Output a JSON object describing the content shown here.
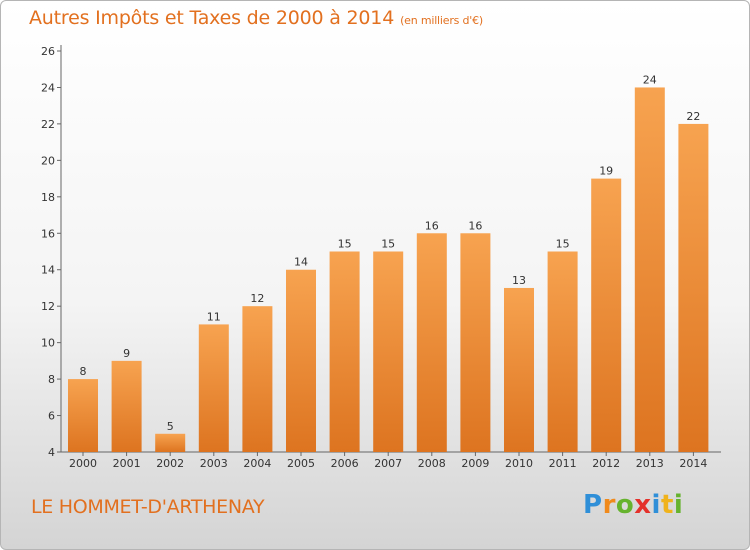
{
  "title": "Autres Impôts et Taxes de 2000 à 2014",
  "subtitle": "(en milliers d'€)",
  "commune": "LE HOMMET-D'ARTHENAY",
  "logo": {
    "letters": [
      "P",
      "r",
      "o",
      "x",
      "i",
      "t",
      "i"
    ],
    "colors": [
      "#2f8fd8",
      "#f08a1c",
      "#66b32e",
      "#e4312b",
      "#2f8fd8",
      "#f0b31c",
      "#66b32e"
    ]
  },
  "colors": {
    "bar_light": "#f7a350",
    "bar_dark": "#dd7420",
    "accent": "#e2701f"
  },
  "chart_data": {
    "type": "bar",
    "title": "Autres Impôts et Taxes de 2000 à 2014",
    "subtitle": "(en milliers d'€)",
    "categories": [
      "2000",
      "2001",
      "2002",
      "2003",
      "2004",
      "2005",
      "2006",
      "2007",
      "2008",
      "2009",
      "2010",
      "2011",
      "2012",
      "2013",
      "2014"
    ],
    "values": [
      8,
      9,
      5,
      11,
      12,
      14,
      15,
      15,
      16,
      16,
      13,
      15,
      19,
      24,
      22
    ],
    "ylim": [
      4,
      26
    ],
    "yticks": [
      4,
      6,
      8,
      10,
      12,
      14,
      16,
      18,
      20,
      22,
      24,
      26
    ],
    "grid": false
  }
}
